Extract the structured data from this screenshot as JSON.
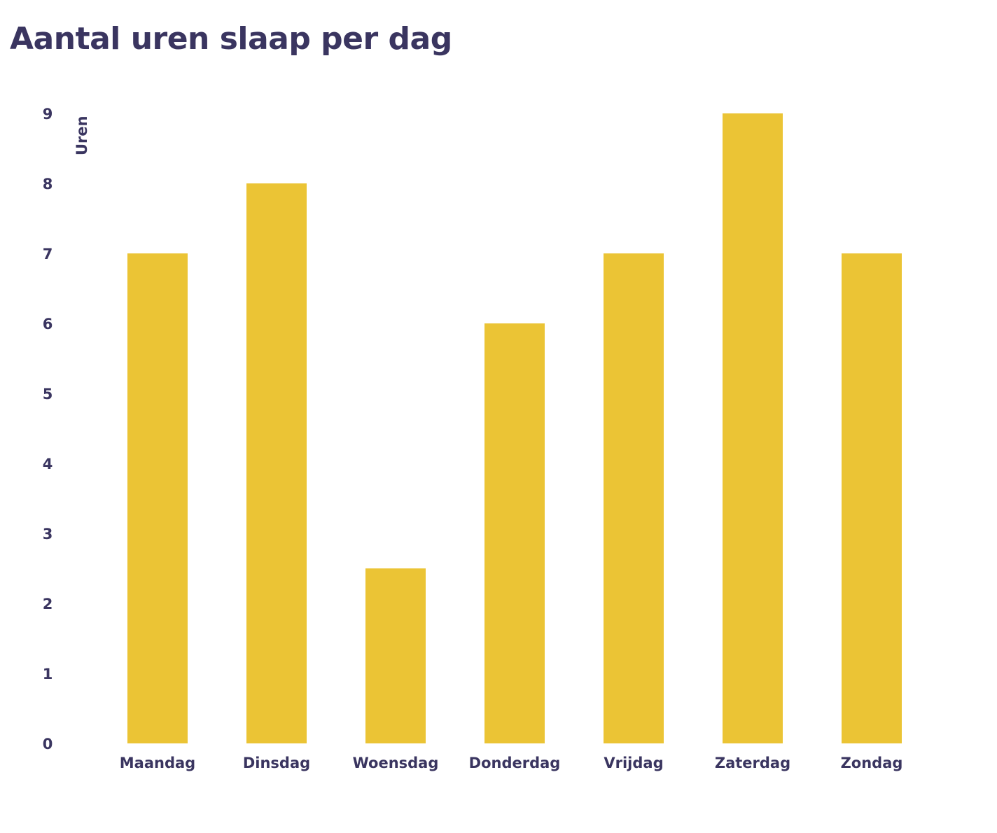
{
  "colors": {
    "bar": "#ebc435",
    "text": "#3a3560",
    "background": "#ffffff"
  },
  "chart_data": {
    "type": "bar",
    "title": "Aantal uren slaap per dag",
    "ylabel": "Uren",
    "xlabel": "",
    "categories": [
      "Maandag",
      "Dinsdag",
      "Woensdag",
      "Donderdag",
      "Vrijdag",
      "Zaterdag",
      "Zondag"
    ],
    "values": [
      7,
      8,
      2.5,
      6,
      7,
      9,
      7
    ],
    "ylim": [
      0,
      9
    ],
    "yticks": [
      "0",
      "1",
      "2",
      "3",
      "4",
      "5",
      "6",
      "7",
      "8",
      "9"
    ],
    "grid": false,
    "legend": "none"
  }
}
